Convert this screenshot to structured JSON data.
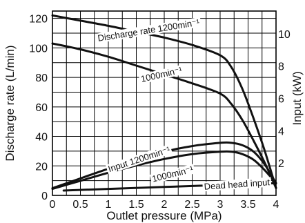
{
  "chart_data": {
    "type": "line",
    "xlabel": "Outlet pressure (MPa)",
    "ylabel": "Discharge rate (L/min)",
    "y2label": "Input (kW)",
    "xlim": [
      0,
      4
    ],
    "ylim": [
      0,
      125
    ],
    "y2lim": [
      0,
      11.4
    ],
    "x_ticks": [
      "0",
      "0.5",
      "1",
      "1.5",
      "2",
      "2.5",
      "3",
      "3.5",
      "4"
    ],
    "y_ticks": [
      "0",
      "20",
      "40",
      "60",
      "80",
      "100",
      "120"
    ],
    "y2_ticks": [
      "2",
      "4",
      "6",
      "8",
      "10"
    ],
    "grid": true,
    "series": [
      {
        "name": "Discharge rate 1200min⁻¹",
        "axis": "left",
        "x": [
          0,
          0.5,
          1,
          1.5,
          2,
          2.5,
          3,
          3.2,
          3.4,
          3.6,
          3.8,
          4
        ],
        "y": [
          122,
          118.5,
          115,
          111,
          107,
          102,
          95,
          87,
          72,
          52,
          30,
          5
        ]
      },
      {
        "name": "1000min⁻¹",
        "axis": "left",
        "x": [
          0,
          0.5,
          1,
          1.5,
          2,
          2.5,
          3,
          3.2,
          3.4,
          3.6,
          3.8,
          4
        ],
        "y": [
          103,
          99,
          94,
          88,
          82,
          76,
          69,
          62,
          51,
          37,
          22,
          5
        ]
      },
      {
        "name": "Input 1200min⁻¹",
        "axis": "right",
        "x": [
          0,
          0.5,
          1,
          1.5,
          2,
          2.5,
          3,
          3.2,
          3.4,
          3.6,
          3.8,
          4
        ],
        "y": [
          0.45,
          1.05,
          1.65,
          2.2,
          2.7,
          3.05,
          3.25,
          3.25,
          3.1,
          2.7,
          1.9,
          0.75
        ]
      },
      {
        "name": "1000min⁻¹",
        "axis": "right",
        "x": [
          0,
          0.5,
          1,
          1.5,
          2,
          2.5,
          3,
          3.2,
          3.4,
          3.6,
          3.8,
          4
        ],
        "y": [
          0.4,
          0.9,
          1.4,
          1.85,
          2.25,
          2.55,
          2.7,
          2.7,
          2.55,
          2.2,
          1.55,
          0.75
        ]
      },
      {
        "name": "Dead head input",
        "axis": "right",
        "x": [
          0.2,
          1,
          2,
          3,
          4
        ],
        "y": [
          0.3,
          0.4,
          0.52,
          0.64,
          0.75
        ]
      }
    ],
    "annotations": [
      {
        "text": "Discharge rate 1200min⁻¹",
        "x": 1.72,
        "y": 112,
        "angle": -9
      },
      {
        "text": "1000min⁻¹",
        "x": 1.95,
        "y": 82,
        "angle": -13
      },
      {
        "text": "Input 1200min⁻¹",
        "x": 1.55,
        "y": 24.5,
        "angle": -18
      },
      {
        "text": "1000min⁻¹",
        "x": 2.15,
        "y": 14.5,
        "angle": -14
      },
      {
        "text": "Dead head input",
        "x": 3.3,
        "y": 7.5,
        "angle": -4
      }
    ]
  }
}
